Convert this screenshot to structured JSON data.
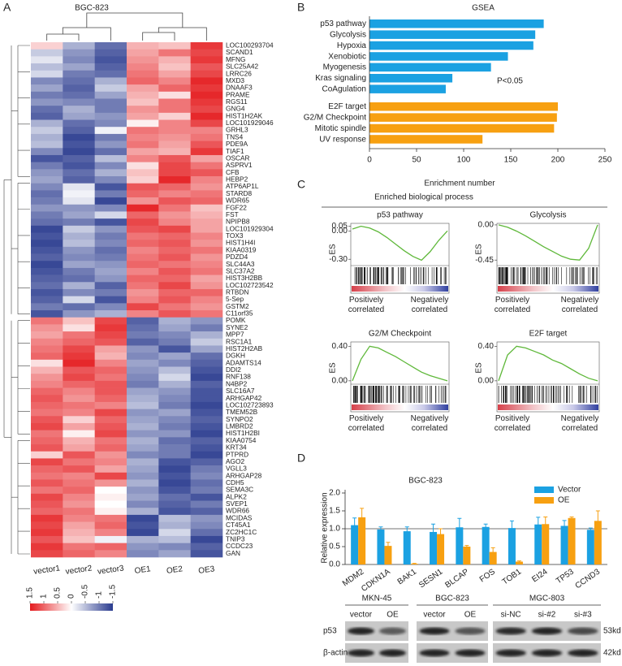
{
  "panel_labels": [
    "A",
    "B",
    "C",
    "D"
  ],
  "chart_data": [
    {
      "type": "heatmap",
      "title": "BGC-823",
      "columns": [
        "vector1",
        "vector2",
        "vector3",
        "OE1",
        "OE2",
        "OE3"
      ],
      "rows": [
        "LOC100293704",
        "SCAND1",
        "MFNG",
        "SLC25A42",
        "LRRC26",
        "MXD3",
        "DNAAF3",
        "PRAME",
        "RGS11",
        "GNG4",
        "HIST1H2AK",
        "LOC101929046",
        "GRHL3",
        "TNS4",
        "PDE9A",
        "TIAF1",
        "OSCAR",
        "ASPRV1",
        "CFB",
        "HEBP2",
        "ATP6AP1L",
        "STARD8",
        "WDR65",
        "FGF22",
        "FST",
        "NPIPB8",
        "LOC101929304",
        "TOX3",
        "HIST1H4I",
        "KIAA0319",
        "PDZD4",
        "SLC44A3",
        "SLC37A2",
        "HIST3H2BB",
        "LOC102723542",
        "RTBDN",
        "5-Sep",
        "GSTM2",
        "C11orf35",
        "POMK",
        "SYNE2",
        "MPP7",
        "RSC1A1",
        "HIST2H2AB",
        "DGKH",
        "ADAMTS14",
        "DDI2",
        "RNF138",
        "N4BP2",
        "SLC16A7",
        "ARHGAP42",
        "LOC102723893",
        "TMEM52B",
        "SYNPO2",
        "LMBRD2",
        "HIST1H2BI",
        "KIAA0754",
        "KRT34",
        "PTPRD",
        "AGO2",
        "VGLL3",
        "ARHGAP28",
        "CDH5",
        "SEMA3C",
        "ALPK2",
        "SVEP1",
        "WDR66",
        "MCIDAS",
        "CT45A1",
        "ZC2HC1C",
        "TNIP3",
        "CCDC23",
        "GAN"
      ],
      "values": [
        [
          0.3,
          -0.6,
          -1.1,
          0.5,
          0.4,
          1.3
        ],
        [
          -0.4,
          -0.8,
          -1.2,
          0.6,
          0.9,
          1.2
        ],
        [
          -0.2,
          -0.9,
          -1.3,
          0.7,
          0.5,
          1.3
        ],
        [
          -0.5,
          -0.7,
          -1.2,
          0.8,
          0.4,
          1.1
        ],
        [
          -0.3,
          -1.0,
          -1.1,
          0.9,
          0.6,
          1.2
        ],
        [
          -0.9,
          -1.1,
          -0.6,
          1.0,
          0.8,
          1.4
        ],
        [
          -0.7,
          -1.2,
          -0.4,
          0.6,
          1.0,
          1.3
        ],
        [
          -1.0,
          -1.1,
          -0.7,
          0.5,
          0.2,
          1.4
        ],
        [
          -0.8,
          -0.9,
          -1.0,
          0.4,
          0.9,
          1.3
        ],
        [
          -1.1,
          -0.6,
          -1.0,
          0.7,
          0.9,
          1.2
        ],
        [
          -1.2,
          -0.7,
          -0.8,
          0.6,
          0.3,
          1.4
        ],
        [
          -0.6,
          -1.1,
          -0.9,
          0.1,
          0.8,
          1.2
        ],
        [
          -0.4,
          -1.2,
          -0.1,
          0.9,
          0.8,
          0.8
        ],
        [
          -0.6,
          -1.4,
          -1.0,
          0.8,
          0.7,
          0.9
        ],
        [
          -0.5,
          -1.3,
          -0.8,
          0.9,
          0.6,
          1.1
        ],
        [
          -0.9,
          -1.4,
          -1.1,
          0.6,
          0.5,
          1.3
        ],
        [
          -1.3,
          -1.2,
          -0.5,
          0.8,
          1.1,
          0.6
        ],
        [
          -1.0,
          -1.3,
          -0.9,
          0.2,
          1.2,
          0.9
        ],
        [
          -0.8,
          -1.1,
          -0.6,
          0.4,
          1.2,
          1.1
        ],
        [
          -0.7,
          -1.2,
          -0.9,
          0.3,
          1.4,
          0.8
        ],
        [
          -0.9,
          -0.2,
          -1.3,
          1.1,
          1.0,
          0.7
        ],
        [
          -1.1,
          -0.1,
          -1.0,
          1.0,
          0.8,
          0.9
        ],
        [
          -1.0,
          -0.2,
          -1.4,
          0.7,
          1.1,
          1.0
        ],
        [
          -0.8,
          -0.8,
          -0.9,
          1.4,
          0.9,
          0.4
        ],
        [
          -1.0,
          -0.7,
          -0.3,
          1.0,
          0.7,
          0.5
        ],
        [
          -1.1,
          -1.0,
          -1.3,
          1.2,
          0.8,
          0.6
        ],
        [
          -1.4,
          -0.4,
          -0.8,
          1.1,
          1.2,
          0.6
        ],
        [
          -1.3,
          -0.6,
          -1.0,
          0.9,
          1.0,
          0.8
        ],
        [
          -1.4,
          -0.5,
          -0.9,
          1.0,
          1.1,
          0.7
        ],
        [
          -1.3,
          -0.8,
          -1.1,
          0.8,
          1.0,
          0.9
        ],
        [
          -1.2,
          -0.9,
          -1.0,
          0.9,
          1.1,
          0.7
        ],
        [
          -1.4,
          -0.7,
          -0.8,
          1.0,
          0.9,
          0.8
        ],
        [
          -1.3,
          -1.0,
          -0.7,
          0.8,
          1.1,
          0.9
        ],
        [
          -1.2,
          -1.1,
          -0.8,
          1.0,
          1.0,
          0.6
        ],
        [
          -1.1,
          -0.6,
          -1.2,
          0.9,
          1.2,
          0.7
        ],
        [
          -1.3,
          -0.9,
          -1.0,
          0.7,
          1.0,
          1.0
        ],
        [
          -1.2,
          -0.3,
          -1.3,
          0.8,
          1.1,
          0.8
        ],
        [
          -1.0,
          -1.1,
          -0.9,
          1.2,
          0.9,
          0.7
        ],
        [
          -1.3,
          -0.8,
          -0.6,
          0.8,
          1.1,
          0.9
        ],
        [
          0.9,
          0.4,
          1.2,
          -1.2,
          -0.6,
          -0.8
        ],
        [
          0.7,
          0.2,
          1.3,
          -1.1,
          -0.7,
          -1.0
        ],
        [
          0.6,
          0.9,
          1.2,
          -1.0,
          -0.9,
          -0.6
        ],
        [
          0.8,
          1.0,
          1.1,
          -1.2,
          -1.0,
          -0.4
        ],
        [
          0.9,
          1.2,
          0.6,
          -0.8,
          -1.3,
          -0.7
        ],
        [
          1.0,
          1.3,
          0.5,
          -0.9,
          -0.7,
          -1.1
        ],
        [
          0.2,
          1.4,
          0.8,
          -0.7,
          -0.9,
          -1.2
        ],
        [
          0.5,
          1.1,
          1.0,
          -0.8,
          -0.5,
          -1.3
        ],
        [
          0.7,
          1.2,
          0.9,
          -0.9,
          -0.3,
          -1.4
        ],
        [
          0.8,
          1.0,
          1.1,
          -1.0,
          -0.6,
          -1.2
        ],
        [
          1.0,
          0.8,
          1.1,
          -0.7,
          -0.8,
          -1.3
        ],
        [
          1.1,
          0.7,
          1.0,
          -0.6,
          -0.9,
          -1.3
        ],
        [
          1.0,
          0.9,
          0.8,
          -0.5,
          -1.0,
          -1.4
        ],
        [
          0.9,
          0.8,
          1.2,
          -0.8,
          -0.7,
          -1.3
        ],
        [
          1.1,
          0.3,
          1.0,
          -0.7,
          -0.9,
          -1.2
        ],
        [
          1.2,
          0.6,
          1.1,
          -0.6,
          -1.0,
          -1.3
        ],
        [
          0.9,
          0.1,
          1.2,
          -0.8,
          -0.8,
          -1.4
        ],
        [
          1.0,
          0.5,
          0.9,
          -0.6,
          -1.1,
          -1.2
        ],
        [
          1.1,
          0.6,
          1.0,
          -0.7,
          -1.0,
          -1.3
        ],
        [
          0.3,
          1.1,
          0.7,
          -0.9,
          -1.0,
          -1.4
        ],
        [
          1.2,
          0.9,
          0.8,
          -0.6,
          -1.3,
          -1.2
        ],
        [
          1.0,
          1.1,
          0.6,
          -0.7,
          -1.4,
          -1.0
        ],
        [
          0.9,
          0.8,
          1.2,
          -0.8,
          -1.3,
          -0.9
        ],
        [
          1.1,
          0.9,
          0.7,
          -0.6,
          -1.4,
          -1.1
        ],
        [
          0.9,
          1.0,
          0.0,
          -0.8,
          -1.3,
          -1.0
        ],
        [
          1.2,
          0.8,
          0.1,
          -0.7,
          -1.1,
          -1.3
        ],
        [
          1.1,
          0.7,
          0.0,
          -0.9,
          -1.2,
          -1.0
        ],
        [
          1.0,
          0.9,
          0.1,
          -0.6,
          -1.3,
          -1.2
        ],
        [
          1.3,
          0.8,
          0.9,
          -1.4,
          -0.5,
          -0.8
        ],
        [
          1.2,
          0.6,
          1.0,
          -1.3,
          -0.6,
          -0.9
        ],
        [
          1.3,
          0.5,
          0.8,
          -1.4,
          -0.3,
          -1.1
        ],
        [
          1.1,
          0.4,
          -0.1,
          -0.6,
          -0.5,
          -1.4
        ],
        [
          1.3,
          0.9,
          1.0,
          -0.8,
          -0.9,
          -1.2
        ],
        [
          1.2,
          1.0,
          0.8,
          -0.9,
          -0.7,
          -1.3
        ]
      ],
      "zlim": [
        -1.5,
        1.5
      ],
      "colors": [
        "#2a3b8f",
        "#ffffff",
        "#e4191c"
      ],
      "colorbar_ticks": [
        1.5,
        1,
        0.5,
        0,
        -0.5,
        -1,
        -1.5
      ]
    },
    {
      "type": "hbar",
      "title": "GSEA",
      "xlabel": "Enrichment number",
      "annotation": "P<0.05",
      "xlim": [
        0,
        250
      ],
      "xticks": [
        0,
        50,
        100,
        150,
        200,
        250
      ],
      "groups": [
        {
          "color": "#1ba1e2",
          "categories": [
            "p53 pathway",
            "Glycolysis",
            "Hypoxia",
            "Xenobiotic",
            "Myogenesis",
            "Kras signaling",
            "CoAgulation"
          ],
          "values": [
            185,
            176,
            174,
            147,
            129,
            88,
            81
          ]
        },
        {
          "color": "#f7a011",
          "categories": [
            "E2F target",
            "G2/M Checkpoint",
            "Mitotic spindle",
            "UV response"
          ],
          "values": [
            200,
            199,
            196,
            120
          ]
        }
      ]
    },
    {
      "type": "gsea",
      "title": "Enriched biological process",
      "plots": [
        {
          "title": "p53 pathway",
          "ylabel": "ES",
          "ylim": [
            -0.35,
            0.08
          ],
          "yticks": [
            {
              "value": 0.05,
              "label": "0.05"
            },
            {
              "value": 0,
              "label": "0.00"
            },
            {
              "value": -0.3,
              "label": "-0.30"
            }
          ],
          "values": [
            0.02,
            0.05,
            0.03,
            -0.01,
            -0.07,
            -0.14,
            -0.21,
            -0.27,
            -0.31,
            -0.22,
            -0.1,
            0.0
          ],
          "x_labels": [
            "Positively correlated",
            "Negatively correlated"
          ]
        },
        {
          "title": "Glycolysis",
          "ylabel": "ES",
          "ylim": [
            -0.5,
            0.02
          ],
          "yticks": [
            {
              "value": 0,
              "label": "0.00"
            },
            {
              "value": -0.45,
              "label": "-0.45"
            }
          ],
          "values": [
            0.0,
            -0.03,
            -0.08,
            -0.14,
            -0.21,
            -0.28,
            -0.34,
            -0.4,
            -0.44,
            -0.45,
            -0.3,
            0.0
          ],
          "x_labels": [
            "Positively correlated",
            "Negatively correlated"
          ]
        },
        {
          "title": "G2/M Checkpoint",
          "ylabel": "ES",
          "ylim": [
            -0.02,
            0.45
          ],
          "yticks": [
            {
              "value": 0.4,
              "label": "0.40"
            },
            {
              "value": 0,
              "label": "0.00"
            }
          ],
          "values": [
            0.0,
            0.25,
            0.4,
            0.38,
            0.33,
            0.28,
            0.22,
            0.16,
            0.1,
            0.06,
            0.03,
            0.0
          ],
          "x_labels": [
            "Positively correlated",
            "Negatively correlated"
          ]
        },
        {
          "title": "E2F target",
          "ylabel": "ES",
          "ylim": [
            -0.02,
            0.45
          ],
          "yticks": [
            {
              "value": 0.4,
              "label": "0.40"
            },
            {
              "value": 0,
              "label": "0.00"
            }
          ],
          "values": [
            0.0,
            0.3,
            0.4,
            0.38,
            0.34,
            0.3,
            0.24,
            0.2,
            0.14,
            0.08,
            0.03,
            0.0
          ],
          "x_labels": [
            "Positively correlated",
            "Negatively correlated"
          ]
        }
      ]
    },
    {
      "type": "grouped_bar",
      "title": "BGC-823",
      "ylabel": "Relative expression",
      "categories": [
        "MDM2",
        "CDKN1A",
        "BAK1",
        "SESN1",
        "BLCAP",
        "FOS",
        "TOB1",
        "EI24",
        "TP53",
        "CCND3"
      ],
      "series": [
        {
          "name": "Vector",
          "color": "#1ba1e2",
          "values": [
            1.1,
            0.98,
            0.93,
            0.91,
            1.04,
            1.05,
            1.02,
            1.12,
            1.08,
            0.97
          ],
          "errors": [
            0.2,
            0.07,
            0.12,
            0.22,
            0.25,
            0.08,
            0.2,
            0.2,
            0.15,
            0.05
          ]
        },
        {
          "name": "OE",
          "color": "#f7a011",
          "values": [
            1.32,
            0.52,
            0.02,
            0.85,
            0.5,
            0.35,
            0.08,
            1.13,
            1.3,
            1.22
          ],
          "errors": [
            0.25,
            0.1,
            0.01,
            0.15,
            0.03,
            0.12,
            0.02,
            0.2,
            0.03,
            0.28
          ]
        }
      ],
      "ylim": [
        0,
        2
      ],
      "yticks": [
        {
          "value": 0,
          "label": "0.0"
        },
        {
          "value": 0.5,
          "label": "0.5"
        },
        {
          "value": 1,
          "label": "1.0"
        },
        {
          "value": 1.5,
          "label": "1.5"
        },
        {
          "value": 2,
          "label": "2.0"
        }
      ],
      "hline": 1
    }
  ],
  "blot": {
    "groups": [
      {
        "name": "MKN-45",
        "lanes": [
          "vector",
          "OE"
        ]
      },
      {
        "name": "BGC-823",
        "lanes": [
          "vector",
          "OE"
        ]
      },
      {
        "name": "MGC-803",
        "lanes": [
          "si-NC",
          "si-#2",
          "si-#3"
        ]
      }
    ],
    "rows": [
      {
        "name": "p53",
        "size": "53kd"
      },
      {
        "name": "β-actin",
        "size": "42kd"
      }
    ]
  }
}
